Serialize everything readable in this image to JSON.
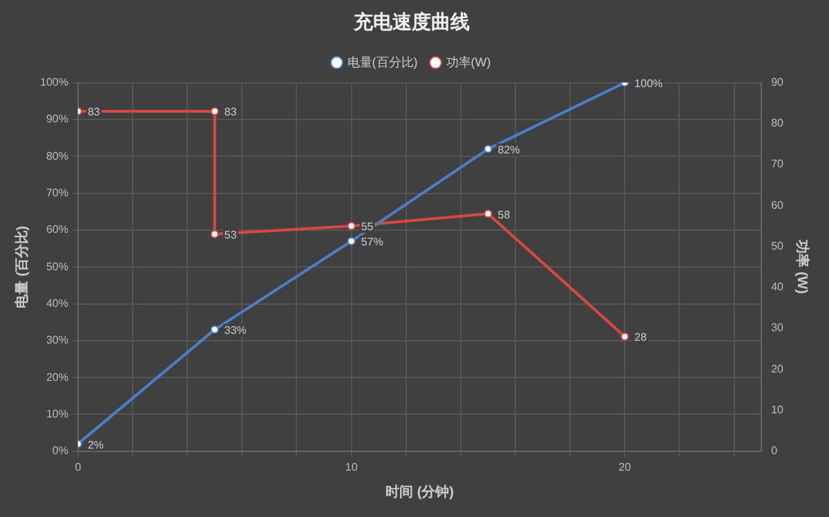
{
  "chart_data": {
    "type": "line",
    "title": "充电速度曲线",
    "xlabel": "时间 (分钟)",
    "ylabel": "电量 (百分比)",
    "y2label": "功率 (W)",
    "xlim": [
      0,
      25
    ],
    "xticks": [
      0,
      {
        "value": 2,
        "label": null
      },
      {
        "value": 4,
        "label": null
      },
      {
        "value": 6,
        "label": null
      },
      {
        "value": 8,
        "label": null
      },
      10,
      {
        "value": 12,
        "label": null
      },
      {
        "value": 14,
        "label": null
      },
      {
        "value": 16,
        "label": null
      },
      {
        "value": 18,
        "label": null
      },
      20,
      {
        "value": 22,
        "label": null
      },
      {
        "value": 24,
        "label": null
      }
    ],
    "ylim": [
      0,
      100
    ],
    "yticks": [
      {
        "value": 0,
        "label": "0%"
      },
      {
        "value": 10,
        "label": "10%"
      },
      {
        "value": 20,
        "label": "20%"
      },
      {
        "value": 30,
        "label": "30%"
      },
      {
        "value": 40,
        "label": "40%"
      },
      {
        "value": 50,
        "label": "50%"
      },
      {
        "value": 60,
        "label": "60%"
      },
      {
        "value": 70,
        "label": "70%"
      },
      {
        "value": 80,
        "label": "80%"
      },
      {
        "value": 90,
        "label": "90%"
      },
      {
        "value": 100,
        "label": "100%"
      }
    ],
    "y2lim": [
      0,
      90
    ],
    "y2ticks": [
      0,
      10,
      20,
      30,
      40,
      50,
      60,
      70,
      80,
      90
    ],
    "series": [
      {
        "name": "电量(百分比)",
        "color": "#4a80c8",
        "x": [
          0,
          5,
          10,
          15,
          20
        ],
        "values": [
          2,
          33,
          57,
          82,
          100
        ],
        "value_labels": [
          "2%",
          "33%",
          "57%",
          "82%",
          "100%"
        ]
      },
      {
        "name": "功率(W)",
        "color": "#d9473f",
        "axis": "y2",
        "x": [
          0,
          5,
          5,
          10,
          15,
          20
        ],
        "values": [
          83,
          83,
          53,
          55,
          58,
          28
        ],
        "value_labels": [
          "83",
          "83",
          "53",
          "55",
          "58",
          "28"
        ]
      }
    ],
    "grid": true,
    "legend": "top",
    "marker": "circle",
    "line_style": "solid"
  }
}
